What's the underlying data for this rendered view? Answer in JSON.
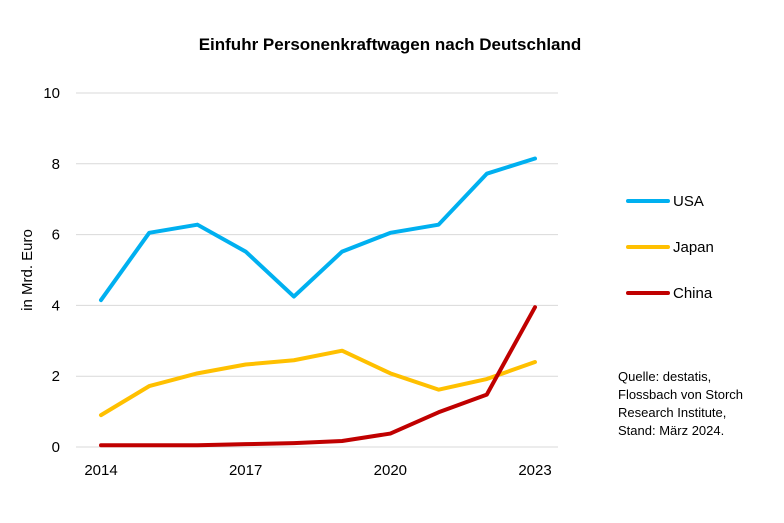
{
  "chart_data": {
    "type": "line",
    "title": "Einfuhr Personenkraftwagen nach Deutschland",
    "ylabel": "in Mrd. Euro",
    "xlabel": "",
    "x": [
      2014,
      2015,
      2016,
      2017,
      2018,
      2019,
      2020,
      2021,
      2022,
      2023
    ],
    "xticks": [
      "2014",
      "2017",
      "2020",
      "2023"
    ],
    "ylim": [
      0,
      10
    ],
    "yticks": [
      "0",
      "2",
      "4",
      "6",
      "8",
      "10"
    ],
    "grid": true,
    "legend_position": "right",
    "series": [
      {
        "name": "USA",
        "color": "#00B0F0",
        "values": [
          4.15,
          6.05,
          6.28,
          5.52,
          4.25,
          5.52,
          6.05,
          6.28,
          7.72,
          8.15
        ]
      },
      {
        "name": "Japan",
        "color": "#FFC000",
        "values": [
          0.9,
          1.72,
          2.08,
          2.33,
          2.45,
          2.72,
          2.08,
          1.62,
          1.92,
          2.4
        ]
      },
      {
        "name": "China",
        "color": "#C00000",
        "values": [
          0.05,
          0.05,
          0.05,
          0.08,
          0.11,
          0.17,
          0.38,
          0.98,
          1.48,
          3.95
        ]
      }
    ]
  },
  "source_note": {
    "line1": "Quelle: destatis,",
    "line2": "Flossbach von Storch",
    "line3": "Research Institute,",
    "line4": "Stand: März 2024."
  }
}
